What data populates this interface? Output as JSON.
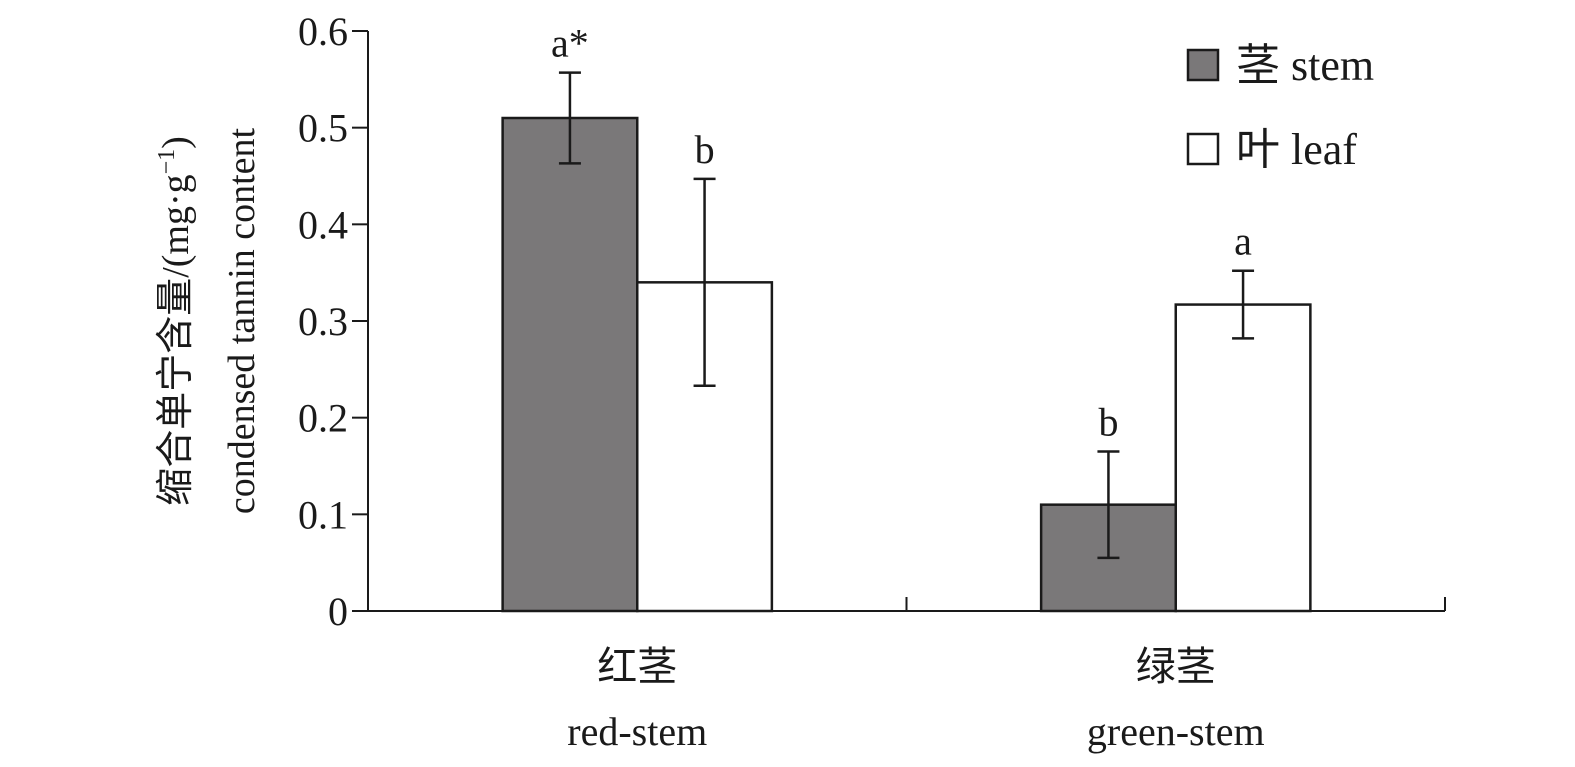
{
  "chart_data": {
    "type": "bar",
    "categories": [
      {
        "zh": "红茎",
        "en": "red-stem"
      },
      {
        "zh": "绿茎",
        "en": "green-stem"
      }
    ],
    "series": [
      {
        "name": "茎 stem",
        "color": "#7a7879",
        "values": [
          0.51,
          0.11
        ],
        "errors": [
          0.047,
          0.055
        ],
        "letters": [
          "a*",
          "b"
        ]
      },
      {
        "name": "叶 leaf",
        "color": "#ffffff",
        "values": [
          0.34,
          0.317
        ],
        "errors": [
          0.107,
          0.035
        ],
        "letters": [
          "b",
          "a"
        ]
      }
    ],
    "ylabel": {
      "zh": "缩合单宁含量/(mg·g",
      "zh_sup": "−1",
      "zh_close": ")",
      "en": "condensed tannin content"
    },
    "ylim": [
      0,
      0.6
    ],
    "yticks": [
      "0",
      "0.1",
      "0.2",
      "0.3",
      "0.4",
      "0.5",
      "0.6"
    ],
    "grid": false,
    "legend_position": "top-right"
  }
}
